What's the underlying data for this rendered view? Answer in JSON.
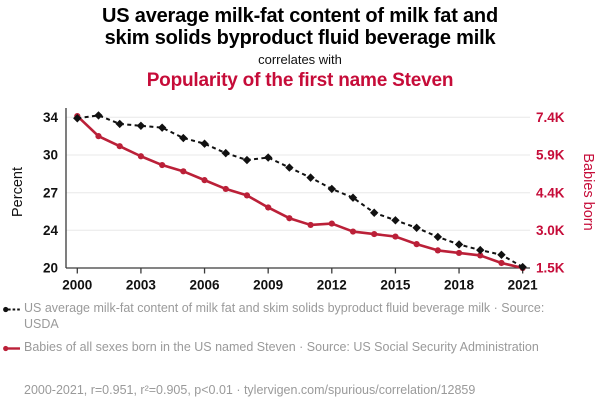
{
  "title": {
    "lines": [
      "US average milk-fat content of milk fat and",
      "skim solids byproduct fluid beverage milk"
    ],
    "connector": "correlates with",
    "subtitle": "Popularity of the first name Steven"
  },
  "colors": {
    "red_line": "#bb2038",
    "red_title": "#c60c39",
    "black_line": "#111111",
    "legend_gray": "#9a9a9a",
    "gridline": "#e8e8e8",
    "axis": "#3a3a3a"
  },
  "chart_data": {
    "type": "line",
    "x": [
      2000,
      2001,
      2002,
      2003,
      2004,
      2005,
      2006,
      2007,
      2008,
      2009,
      2010,
      2011,
      2012,
      2013,
      2014,
      2015,
      2016,
      2017,
      2018,
      2019,
      2020,
      2021
    ],
    "series": [
      {
        "name": "US average milk-fat content of milk fat and skim solids byproduct fluid beverage milk",
        "axis": "left",
        "unit": "percent",
        "style": "dashed",
        "marker": "diamond",
        "values": [
          33.9,
          34.2,
          33.3,
          33.1,
          32.9,
          31.8,
          31.2,
          30.2,
          29.6,
          29.8,
          29.0,
          28.2,
          27.3,
          26.6,
          25.4,
          24.8,
          24.2,
          23.3,
          22.5,
          21.9,
          21.4,
          20.1
        ]
      },
      {
        "name": "Babies of all sexes born in the US named Steven",
        "axis": "right",
        "unit": "thousands of babies",
        "style": "solid",
        "marker": "circle",
        "values": [
          7.45,
          6.65,
          6.25,
          5.85,
          5.5,
          5.25,
          4.9,
          4.55,
          4.3,
          3.85,
          3.45,
          3.2,
          3.25,
          2.95,
          2.85,
          2.75,
          2.45,
          2.2,
          2.1,
          2.0,
          1.7,
          1.5
        ]
      }
    ],
    "left_axis": {
      "label": "Percent",
      "ticks": [
        34,
        30,
        27,
        24,
        20
      ]
    },
    "right_axis": {
      "label": "Babies born",
      "tick_labels": [
        "7.4K",
        "5.9K",
        "4.4K",
        "3.0K",
        "1.5K"
      ],
      "tick_values": [
        7.4,
        5.9,
        4.4,
        3.0,
        1.5
      ]
    },
    "x_axis": {
      "ticks": [
        2000,
        2003,
        2006,
        2009,
        2012,
        2015,
        2018,
        2021
      ]
    },
    "grid": "horizontal-only",
    "legend_position": "bottom"
  },
  "legend": {
    "items": [
      {
        "label": "US average milk-fat content of milk fat and skim solids byproduct fluid beverage milk · Source: USDA"
      },
      {
        "label": "Babies of all sexes born in the US named Steven · Source: US Social Security Administration"
      }
    ]
  },
  "footer": "2000-2021, r=0.951, r²=0.905, p<0.01 · tylervigen.com/spurious/correlation/12859"
}
